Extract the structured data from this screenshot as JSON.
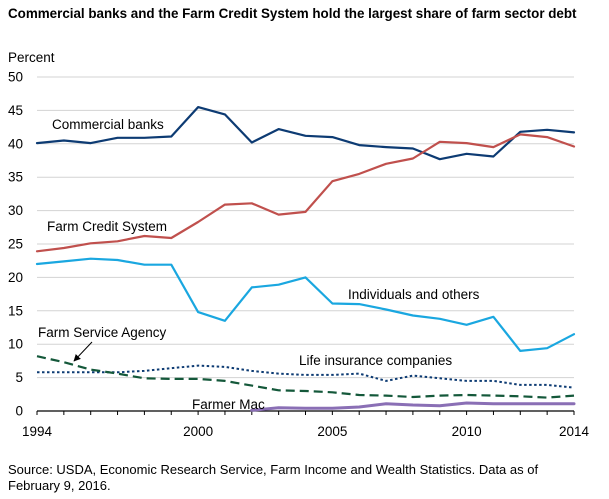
{
  "title": "Commercial banks and the Farm Credit System hold the largest share of farm sector debt",
  "source_line1": "Source: USDA, Economic Research Service, Farm Income and Wealth Statistics. Data as of",
  "source_line2": "February 9, 2016.",
  "chart_data": {
    "type": "line",
    "ylabel": "Percent",
    "ylim": [
      0,
      50
    ],
    "yticks": [
      0,
      5,
      10,
      15,
      20,
      25,
      30,
      35,
      40,
      45,
      50
    ],
    "xlim": [
      1994,
      2014
    ],
    "xticks": [
      1994,
      2000,
      2005,
      2010,
      2014
    ],
    "grid": true,
    "x": [
      1994,
      1995,
      1996,
      1997,
      1998,
      1999,
      2000,
      2001,
      2002,
      2003,
      2004,
      2005,
      2006,
      2007,
      2008,
      2009,
      2010,
      2011,
      2012,
      2013,
      2014
    ],
    "series": [
      {
        "name": "Commercial banks",
        "color": "#0d3b73",
        "style": "solid",
        "width": 2.2,
        "values": [
          40.1,
          40.5,
          40.1,
          40.9,
          40.9,
          41.1,
          45.5,
          44.4,
          40.2,
          42.2,
          41.2,
          41.0,
          39.8,
          39.5,
          39.3,
          37.7,
          38.5,
          38.1,
          41.8,
          42.1,
          41.7
        ]
      },
      {
        "name": "Farm Credit System",
        "color": "#c0504d",
        "style": "solid",
        "width": 2.2,
        "values": [
          23.9,
          24.4,
          25.1,
          25.4,
          26.2,
          25.9,
          28.3,
          30.9,
          31.1,
          29.4,
          29.8,
          34.4,
          35.5,
          37.0,
          37.8,
          40.3,
          40.1,
          39.5,
          41.4,
          41.0,
          39.6
        ]
      },
      {
        "name": "Individuals and others",
        "color": "#1aa7e0",
        "style": "solid",
        "width": 2.2,
        "values": [
          22.0,
          22.4,
          22.8,
          22.6,
          21.9,
          21.9,
          14.8,
          13.5,
          18.5,
          18.9,
          20.0,
          16.1,
          16.0,
          15.2,
          14.3,
          13.8,
          12.9,
          14.1,
          9.0,
          9.4,
          11.5
        ]
      },
      {
        "name": "Life insurance companies",
        "color": "#0d3b73",
        "style": "dotted",
        "width": 2,
        "values": [
          5.8,
          5.8,
          5.8,
          5.8,
          6.0,
          6.4,
          6.8,
          6.6,
          6.0,
          5.6,
          5.4,
          5.4,
          5.6,
          4.5,
          5.3,
          4.9,
          4.5,
          4.5,
          3.9,
          3.9,
          3.5
        ]
      },
      {
        "name": "Farm Service Agency",
        "color": "#14583a",
        "style": "dashed",
        "width": 2.2,
        "values": [
          8.2,
          7.3,
          6.2,
          5.6,
          4.9,
          4.8,
          4.8,
          4.5,
          3.8,
          3.1,
          3.0,
          2.8,
          2.4,
          2.3,
          2.1,
          2.3,
          2.4,
          2.3,
          2.2,
          2.0,
          2.3
        ]
      },
      {
        "name": "Farmer Mac",
        "color": "#8a6fb5",
        "style": "solid",
        "width": 3,
        "x": [
          2002,
          2003,
          2004,
          2005,
          2006,
          2007,
          2008,
          2009,
          2010,
          2011,
          2012,
          2013,
          2014
        ],
        "values": [
          0.1,
          0.5,
          0.4,
          0.4,
          0.6,
          1.1,
          0.9,
          0.8,
          1.2,
          1.1,
          1.1,
          1.1,
          1.1
        ]
      }
    ],
    "annotations": [
      {
        "text": "Commercial banks",
        "target": "Commercial banks"
      },
      {
        "text": "Farm Credit System",
        "target": "Farm Credit System"
      },
      {
        "text": "Individuals and others",
        "target": "Individuals and others"
      },
      {
        "text": "Life insurance companies",
        "target": "Life insurance companies"
      },
      {
        "text": "Farm Service Agency",
        "target": "Farm Service Agency",
        "arrow": true
      },
      {
        "text": "Farmer Mac",
        "target": "Farmer Mac"
      }
    ]
  }
}
